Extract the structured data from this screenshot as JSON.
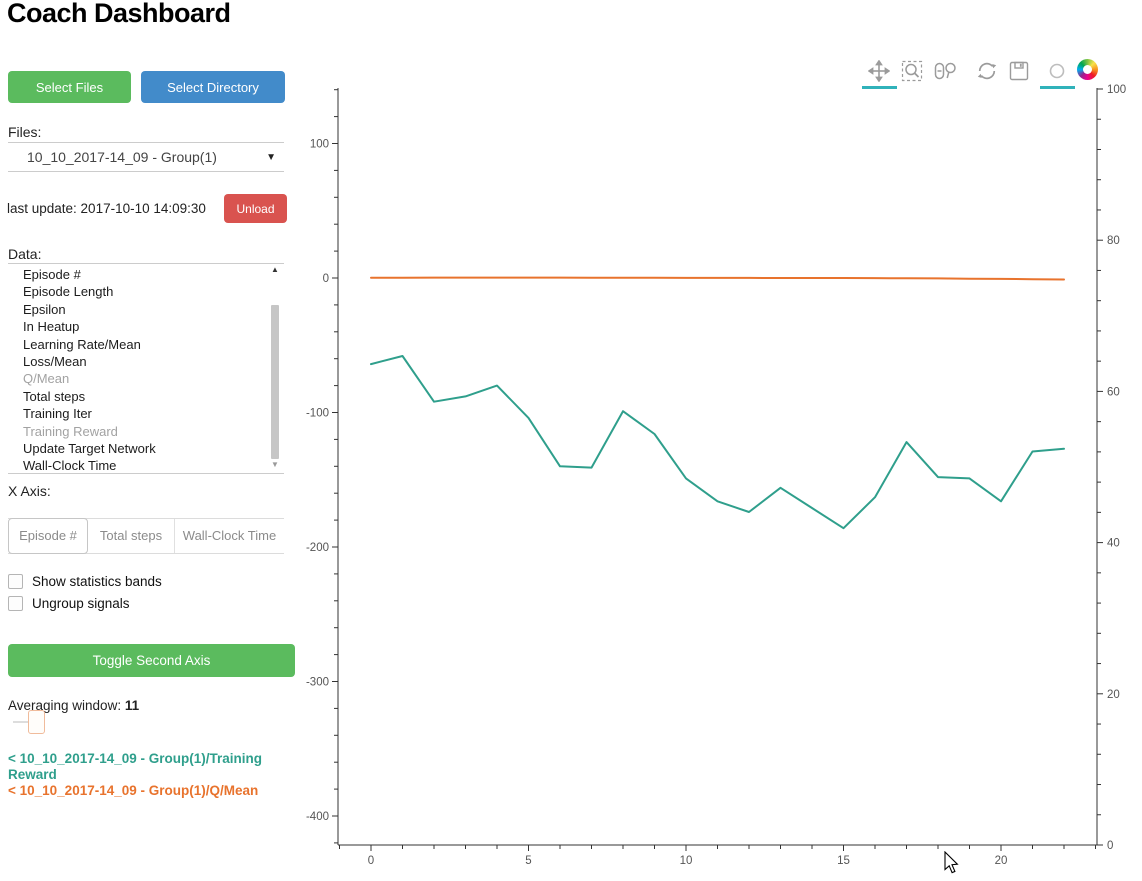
{
  "title": "Coach Dashboard",
  "file_controls": {
    "select_files": "Select Files",
    "select_directory": "Select Directory"
  },
  "files": {
    "label": "Files:",
    "selected": "10_10_2017-14_09 - Group(1)",
    "dropdown_caret": "▼",
    "last_update": "last update: 2017-10-10 14:09:30",
    "unload": "Unload"
  },
  "data_list": {
    "label": "Data:",
    "items": [
      {
        "label": "Episode #",
        "dimmed": false
      },
      {
        "label": "Episode Length",
        "dimmed": false
      },
      {
        "label": "Epsilon",
        "dimmed": false
      },
      {
        "label": "In Heatup",
        "dimmed": false
      },
      {
        "label": "Learning Rate/Mean",
        "dimmed": false
      },
      {
        "label": "Loss/Mean",
        "dimmed": false
      },
      {
        "label": "Q/Mean",
        "dimmed": true
      },
      {
        "label": "Total steps",
        "dimmed": false
      },
      {
        "label": "Training Iter",
        "dimmed": false
      },
      {
        "label": "Training Reward",
        "dimmed": true
      },
      {
        "label": "Update Target Network",
        "dimmed": false
      },
      {
        "label": "Wall-Clock Time",
        "dimmed": false
      }
    ]
  },
  "x_axis_selector": {
    "label": "X Axis:",
    "tabs": [
      {
        "label": "Episode #",
        "active": true
      },
      {
        "label": "Total steps",
        "active": false
      },
      {
        "label": "Wall-Clock Time",
        "active": false
      }
    ]
  },
  "options": [
    {
      "label": "Show statistics bands",
      "checked": false
    },
    {
      "label": "Ungroup signals",
      "checked": false
    }
  ],
  "toggle_second_axis": "Toggle Second Axis",
  "averaging": {
    "label": "Averaging window:",
    "value": "11"
  },
  "legend": [
    {
      "label": "< 10_10_2017-14_09 - Group(1)/Training Reward",
      "color": "#2f9f8c"
    },
    {
      "label": "< 10_10_2017-14_09 - Group(1)/Q/Mean",
      "color": "#e8732d"
    }
  ],
  "chart_toolbar": {
    "tools": [
      "pan",
      "box-zoom",
      "wheel-zoom",
      "reset",
      "save",
      "hover"
    ],
    "active_tools": [
      "pan",
      "hover"
    ],
    "active_underline_color": "#30b2ba"
  },
  "chart_data": {
    "type": "line",
    "x": [
      0,
      1,
      2,
      3,
      4,
      5,
      6,
      7,
      8,
      9,
      10,
      11,
      12,
      13,
      14,
      15,
      16,
      17,
      18,
      19,
      20,
      21,
      22
    ],
    "series": [
      {
        "name": "10_10_2017-14_09 - Group(1)/Training Reward",
        "color": "#2f9f8c",
        "axis": "left",
        "values": [
          -64,
          -58,
          -92,
          -88,
          -80,
          -104,
          -140,
          -141,
          -99,
          -116,
          -149,
          -166,
          -174,
          -156,
          -171,
          -186,
          -163,
          -122,
          -148,
          -149,
          -166,
          -129,
          -127
        ]
      },
      {
        "name": "10_10_2017-14_09 - Group(1)/Q/Mean",
        "color": "#e8732d",
        "axis": "left",
        "values": [
          0.2,
          0.2,
          0.3,
          0.3,
          0.3,
          0.3,
          0.3,
          0.2,
          0.2,
          0.2,
          0.1,
          0.1,
          0.1,
          0,
          0,
          0,
          -0.1,
          -0.2,
          -0.3,
          -0.5,
          -0.7,
          -0.9,
          -1.1
        ]
      }
    ],
    "title": "",
    "xlabel": "",
    "ylabel": "",
    "grid": false,
    "legend_position": "outside-left",
    "left_axis": {
      "range": [
        -422,
        141
      ],
      "tick_values": [
        100,
        0,
        -100,
        -200,
        -300,
        -400
      ],
      "tick_labels": [
        "100",
        "0",
        "-100",
        "-200",
        "-300",
        "-400"
      ],
      "minor_step": 20
    },
    "right_axis": {
      "range": [
        0,
        100
      ],
      "tick_values": [
        100,
        80,
        60,
        40,
        20,
        0
      ],
      "tick_labels": [
        "100",
        "80",
        "60",
        "40",
        "20",
        "0"
      ],
      "minor_step": 4
    },
    "x_axis": {
      "range": [
        -1.05,
        23.05
      ],
      "tick_values": [
        0,
        5,
        10,
        15,
        20
      ],
      "tick_labels": [
        "0",
        "5",
        "10",
        "15",
        "20"
      ],
      "minor_step": 1
    }
  }
}
